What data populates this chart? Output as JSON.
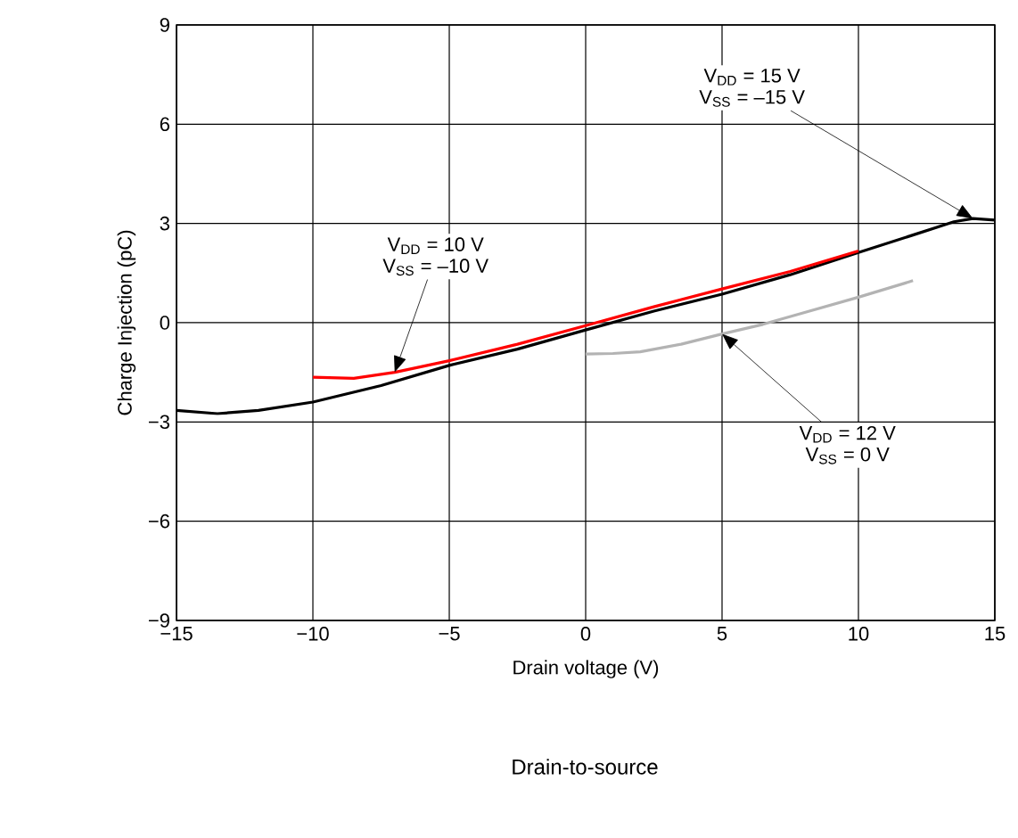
{
  "chart_data": {
    "type": "line",
    "xlabel": "Drain voltage (V)",
    "ylabel": "Charge Injection (pC)",
    "xlim": [
      -15,
      15
    ],
    "ylim": [
      -9,
      9
    ],
    "xticks": [
      {
        "value": -15,
        "label": "−15"
      },
      {
        "value": -10,
        "label": "−10"
      },
      {
        "value": -5,
        "label": "−5"
      },
      0,
      5,
      10,
      15
    ],
    "yticks": [
      {
        "value": -9,
        "label": "−9"
      },
      {
        "value": -6,
        "label": "−6"
      },
      {
        "value": -3,
        "label": "−3"
      },
      0,
      3,
      6,
      9
    ],
    "grid": true,
    "marker": "none",
    "line_style": "solid",
    "series": [
      {
        "color": "#000000",
        "x": [
          -15,
          -13.5,
          -12,
          -10,
          -7.5,
          -5,
          -2.5,
          0,
          2.5,
          5,
          7.5,
          10,
          12,
          13.5,
          14.2,
          15
        ],
        "values": [
          -2.65,
          -2.75,
          -2.65,
          -2.4,
          -1.9,
          -1.29,
          -0.8,
          -0.22,
          0.35,
          0.86,
          1.45,
          2.12,
          2.65,
          3.05,
          3.15,
          3.1
        ]
      },
      {
        "color": "#ff0000",
        "x": [
          -10,
          -8.5,
          -7,
          -5,
          -2.5,
          0,
          2.5,
          5,
          7.5,
          10
        ],
        "values": [
          -1.65,
          -1.68,
          -1.5,
          -1.15,
          -0.65,
          -0.09,
          0.48,
          1.02,
          1.55,
          2.17
        ]
      },
      {
        "color": "#b3b3b3",
        "x": [
          0,
          1,
          2,
          3.5,
          5,
          6.5,
          8,
          10,
          12
        ],
        "values": [
          -0.95,
          -0.93,
          -0.88,
          -0.65,
          -0.34,
          -0.05,
          0.3,
          0.77,
          1.27
        ]
      }
    ],
    "annotations": [
      {
        "text": "V$_{DD}$ = 15 V",
        "x": 14.2,
        "y": 3.15
      },
      "V$_{SS}$ = –15 V",
      {
        "text": "V$_{DD}$ = 10 V",
        "x": -7,
        "y": -1.5
      },
      "V$_{SS}$ = –10 V",
      {
        "text": "V$_{DD}$ = 12 V",
        "x": 5,
        "y": -0.34
      },
      "V$_{SS}$ = 0 V",
      "Drain-to-source"
    ]
  }
}
